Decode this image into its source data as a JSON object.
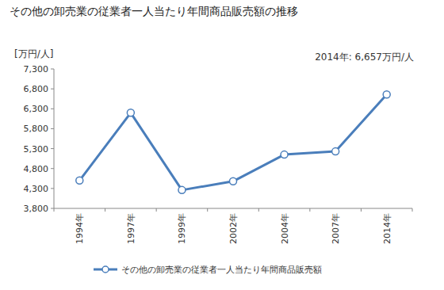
{
  "chart_data": {
    "type": "line",
    "title": "その他の卸売業の従業者一人当たり年間商品販売額の推移",
    "y_label": "[万円/人]",
    "annotation": "2014年: 6,657万円/人",
    "categories": [
      "1994年",
      "1997年",
      "1999年",
      "2002年",
      "2004年",
      "2007年",
      "2014年"
    ],
    "series": [
      {
        "name": "その他の卸売業の従業者一人当たり年間商品販売額",
        "color": "#4a7ebb",
        "marker": "circle",
        "values": [
          4500,
          6200,
          4260,
          4480,
          5150,
          5230,
          6657
        ]
      }
    ],
    "ylim": [
      3800,
      7300
    ],
    "yticks": [
      {
        "value": 3800,
        "label": "3,800"
      },
      {
        "value": 4300,
        "label": "4,300"
      },
      {
        "value": 4800,
        "label": "4,800"
      },
      {
        "value": 5300,
        "label": "5,300"
      },
      {
        "value": 5800,
        "label": "5,800"
      },
      {
        "value": 6300,
        "label": "6,300"
      },
      {
        "value": 6800,
        "label": "6,800"
      },
      {
        "value": 7300,
        "label": "7,300"
      }
    ],
    "grid": false,
    "legend": "bottom"
  }
}
